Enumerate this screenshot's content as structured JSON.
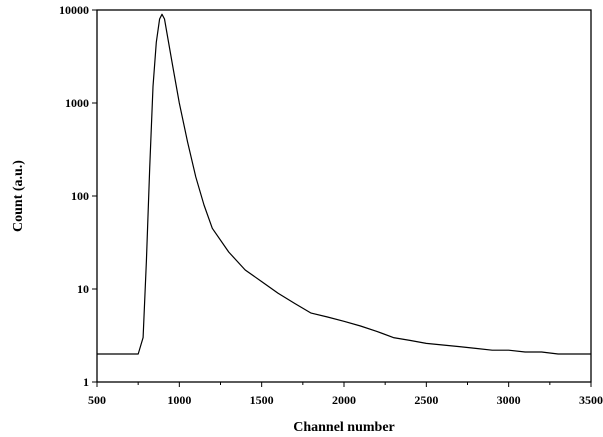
{
  "chart_data": {
    "type": "line",
    "title": "",
    "xlabel": "Channel number",
    "ylabel": "Count (a.u.)",
    "x_scale": "linear",
    "y_scale": "log",
    "xlim": [
      500,
      3500
    ],
    "ylim": [
      1,
      10000
    ],
    "x_ticks": [
      "500",
      "1000",
      "1500",
      "2000",
      "2500",
      "3000",
      "3500"
    ],
    "y_ticks": [
      "1",
      "10",
      "100",
      "1000",
      "10000"
    ],
    "grid": false,
    "legend": "none",
    "line_color": "#000000",
    "series": [
      {
        "x": [
          500,
          600,
          700,
          750,
          780,
          800,
          820,
          840,
          860,
          880,
          895,
          910,
          930,
          960,
          1000,
          1050,
          1100,
          1150,
          1200,
          1300,
          1400,
          1500,
          1600,
          1700,
          1800,
          1900,
          2000,
          2100,
          2200,
          2300,
          2400,
          2500,
          2600,
          2700,
          2800,
          2900,
          3000,
          3100,
          3200,
          3300,
          3400,
          3500
        ],
        "y": [
          2,
          2,
          2,
          2,
          3,
          20,
          200,
          1500,
          4500,
          8000,
          9000,
          8000,
          5000,
          2500,
          1000,
          380,
          160,
          80,
          45,
          25,
          16,
          12,
          9,
          7,
          5.5,
          5,
          4.5,
          4,
          3.5,
          3,
          2.8,
          2.6,
          2.5,
          2.4,
          2.3,
          2.2,
          2.2,
          2.1,
          2.1,
          2,
          2,
          2
        ]
      }
    ]
  }
}
